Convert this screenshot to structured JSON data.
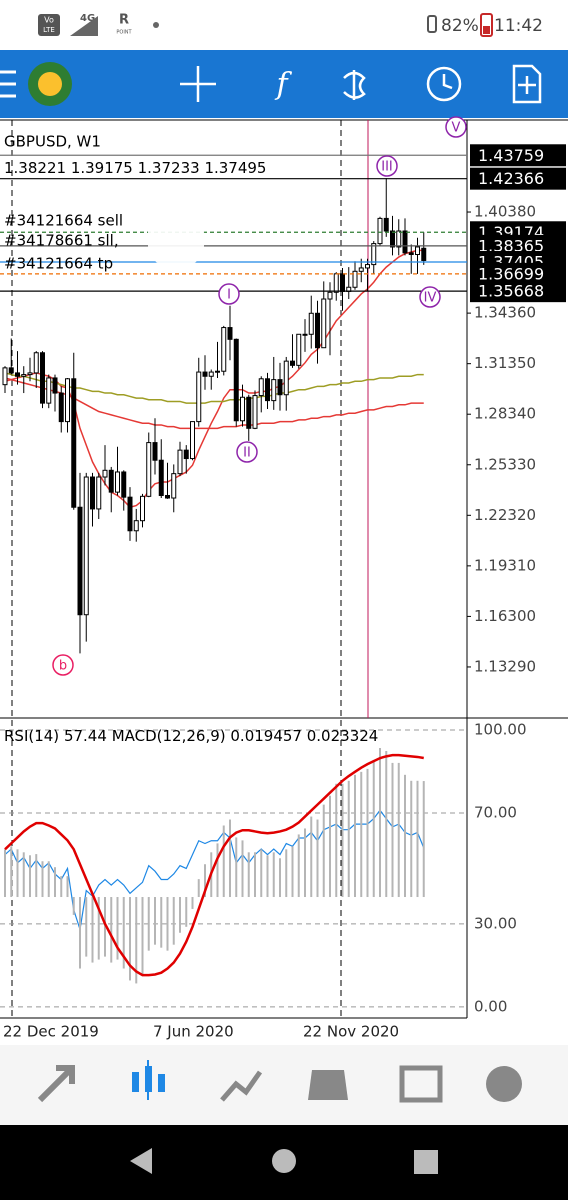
{
  "status_bar": {
    "vo": "Vo",
    "lte": "LTE",
    "network": "4G",
    "roaming": "R",
    "point": "POINT",
    "battery": "82%",
    "time": "11:42"
  },
  "chart_data": [
    {
      "type": "candlestick",
      "title": "GBPUSD, W1",
      "categories": [
        "22 Dec 2019",
        null,
        null,
        null,
        null,
        null,
        null,
        null,
        null,
        null,
        null,
        null,
        null,
        null,
        null,
        null,
        null,
        null,
        null,
        null,
        null,
        null,
        null,
        null,
        "7 Jun 2020",
        null,
        null,
        null,
        null,
        null,
        null,
        null,
        null,
        null,
        null,
        null,
        null,
        null,
        null,
        null,
        null,
        null,
        null,
        null,
        null,
        null,
        null,
        null,
        "22 Nov 2020",
        null,
        null,
        null,
        null,
        null,
        null,
        null,
        null,
        null,
        null,
        null,
        null,
        null,
        null,
        null,
        null,
        null,
        null,
        null
      ],
      "open": [
        1.301,
        1.311,
        1.308,
        1.306,
        1.307,
        1.308,
        1.32,
        1.29,
        1.305,
        1.296,
        1.279,
        1.3045,
        1.228,
        1.164,
        1.246,
        1.227,
        1.246,
        1.25,
        1.237,
        1.249,
        1.234,
        1.214,
        1.22,
        1.2345,
        1.2665,
        1.256,
        1.235,
        1.2335,
        1.248,
        1.262,
        1.257,
        1.279,
        1.3085,
        1.306,
        1.3085,
        1.309,
        1.335,
        1.328,
        1.2795,
        1.2935,
        1.275,
        1.2945,
        1.3045,
        1.2915,
        1.304,
        1.295,
        1.315,
        1.3125,
        1.331,
        1.331,
        1.3435,
        1.323,
        1.352,
        1.356,
        1.367,
        1.3565,
        1.359,
        1.3685,
        1.3705,
        1.3725,
        1.385,
        1.4,
        1.3925,
        1.383,
        1.3925,
        1.3795,
        1.3785,
        1.38221
      ],
      "high": [
        1.312,
        1.3285,
        1.321,
        1.312,
        1.317,
        1.321,
        1.321,
        1.307,
        1.307,
        1.3,
        1.305,
        1.32,
        1.2485,
        1.2485,
        1.2485,
        1.2485,
        1.265,
        1.252,
        1.264,
        1.25,
        1.24,
        1.227,
        1.236,
        1.2725,
        1.281,
        1.2685,
        1.2545,
        1.2535,
        1.267,
        1.265,
        1.279,
        1.317,
        1.3185,
        1.31,
        1.3265,
        1.336,
        1.348,
        1.3285,
        1.301,
        1.295,
        1.2975,
        1.306,
        1.308,
        1.3175,
        1.314,
        1.3175,
        1.331,
        1.331,
        1.34,
        1.354,
        1.351,
        1.3625,
        1.362,
        1.368,
        1.3705,
        1.371,
        1.3745,
        1.376,
        1.376,
        1.3865,
        1.401,
        1.424,
        1.4015,
        1.3995,
        1.4,
        1.3845,
        1.3885,
        1.39175
      ],
      "low": [
        1.296,
        1.307,
        1.301,
        1.296,
        1.303,
        1.299,
        1.287,
        1.287,
        1.285,
        1.2725,
        1.2725,
        1.2265,
        1.141,
        1.148,
        1.2165,
        1.221,
        1.241,
        1.225,
        1.235,
        1.226,
        1.208,
        1.2075,
        1.216,
        1.234,
        1.2475,
        1.2335,
        1.233,
        1.225,
        1.2465,
        1.248,
        1.256,
        1.276,
        1.298,
        1.298,
        1.305,
        1.3065,
        1.3155,
        1.276,
        1.276,
        1.2675,
        1.2745,
        1.2845,
        1.2865,
        1.286,
        1.2855,
        1.2855,
        1.311,
        1.3105,
        1.3205,
        1.3225,
        1.3135,
        1.323,
        1.3185,
        1.351,
        1.345,
        1.352,
        1.3575,
        1.362,
        1.3565,
        1.367,
        1.3835,
        1.389,
        1.378,
        1.378,
        1.378,
        1.367,
        1.367,
        1.37233
      ],
      "close": [
        1.311,
        1.308,
        1.306,
        1.307,
        1.308,
        1.32,
        1.29,
        1.305,
        1.296,
        1.279,
        1.3045,
        1.228,
        1.164,
        1.246,
        1.227,
        1.246,
        1.25,
        1.237,
        1.249,
        1.234,
        1.214,
        1.22,
        1.2345,
        1.2665,
        1.256,
        1.235,
        1.2335,
        1.248,
        1.262,
        1.257,
        1.279,
        1.3085,
        1.306,
        1.3085,
        1.309,
        1.335,
        1.328,
        1.2795,
        1.2935,
        1.275,
        1.2945,
        1.3045,
        1.2915,
        1.304,
        1.295,
        1.315,
        1.3125,
        1.331,
        1.331,
        1.3435,
        1.323,
        1.352,
        1.356,
        1.367,
        1.3565,
        1.359,
        1.3685,
        1.3705,
        1.3725,
        1.385,
        1.4,
        1.3925,
        1.383,
        1.3925,
        1.3795,
        1.3785,
        1.383,
        1.37495
      ],
      "lines": [
        {
          "color": "#e53935",
          "values": [
            1.303,
            1.304,
            1.305,
            1.306,
            1.307,
            1.308,
            1.307,
            1.306,
            1.304,
            1.3,
            1.299,
            1.29,
            1.275,
            1.265,
            1.255,
            1.248,
            1.242,
            1.237,
            1.235,
            1.232,
            1.228,
            1.229,
            1.232,
            1.238,
            1.242,
            1.243,
            1.243,
            1.245,
            1.247,
            1.249,
            1.253,
            1.262,
            1.27,
            1.278,
            1.285,
            1.293,
            1.298,
            1.298,
            1.298,
            1.296,
            1.296,
            1.297,
            1.297,
            1.299,
            1.3,
            1.303,
            1.306,
            1.31,
            1.314,
            1.319,
            1.322,
            1.327,
            1.333,
            1.339,
            1.343,
            1.347,
            1.351,
            1.355,
            1.358,
            1.362,
            1.367,
            1.371,
            1.374,
            1.377,
            1.379,
            1.38,
            1.381,
            1.381
          ]
        },
        {
          "color": "#9e9d24",
          "values": [
            1.308,
            1.307,
            1.306,
            1.306,
            1.305,
            1.304,
            1.303,
            1.303,
            1.302,
            1.301,
            1.3,
            1.299,
            1.299,
            1.298,
            1.297,
            1.297,
            1.296,
            1.296,
            1.295,
            1.295,
            1.294,
            1.293,
            1.293,
            1.292,
            1.292,
            1.292,
            1.291,
            1.291,
            1.291,
            1.29,
            1.29,
            1.29,
            1.29,
            1.291,
            1.291,
            1.291,
            1.292,
            1.292,
            1.292,
            1.293,
            1.293,
            1.294,
            1.294,
            1.295,
            1.296,
            1.296,
            1.297,
            1.298,
            1.298,
            1.299,
            1.3,
            1.3,
            1.301,
            1.301,
            1.302,
            1.302,
            1.303,
            1.303,
            1.304,
            1.304,
            1.305,
            1.305,
            1.305,
            1.306,
            1.306,
            1.306,
            1.307,
            1.307
          ]
        },
        {
          "color": "#e53935",
          "values": [
            1.305,
            1.304,
            1.303,
            1.302,
            1.301,
            1.3,
            1.299,
            1.298,
            1.297,
            1.296,
            1.295,
            1.293,
            1.291,
            1.289,
            1.287,
            1.285,
            1.284,
            1.283,
            1.282,
            1.281,
            1.28,
            1.279,
            1.278,
            1.278,
            1.277,
            1.277,
            1.276,
            1.276,
            1.275,
            1.275,
            1.275,
            1.275,
            1.275,
            1.275,
            1.275,
            1.276,
            1.276,
            1.276,
            1.277,
            1.277,
            1.277,
            1.278,
            1.278,
            1.278,
            1.279,
            1.279,
            1.279,
            1.28,
            1.28,
            1.281,
            1.281,
            1.282,
            1.282,
            1.283,
            1.283,
            1.284,
            1.284,
            1.285,
            1.286,
            1.286,
            1.287,
            1.288,
            1.288,
            1.289,
            1.289,
            1.29,
            1.29,
            1.29
          ]
        }
      ],
      "price_levels": [
        {
          "value": 1.43759,
          "color": "#777777"
        },
        {
          "value": 1.42366,
          "color": "#000000"
        },
        {
          "value": 1.39174,
          "color": "#2e7d32",
          "dash": true
        },
        {
          "value": 1.38365,
          "color": "#555555"
        },
        {
          "value": 1.37405,
          "color": "#1e88e5"
        },
        {
          "value": 1.36699,
          "color": "#ef6c00",
          "dash": true
        },
        {
          "value": 1.35668,
          "color": "#000000"
        }
      ],
      "annotations": [
        "#34121664 sell",
        "#34178661 sll,",
        "#34121664 tp"
      ],
      "wave_labels": [
        "I",
        "II",
        "III",
        "IV",
        "V",
        "b"
      ],
      "ylim": [
        1.1025,
        1.4586
      ],
      "yticks": [
        {
          "value": 1.4038,
          "label": "1.40380"
        },
        {
          "value": 1.3436,
          "label": "1.34360"
        },
        {
          "value": 1.3135,
          "label": "1.31350"
        },
        {
          "value": 1.2834,
          "label": "1.28340"
        },
        {
          "value": 1.2533,
          "label": "1.25330"
        },
        {
          "value": 1.2232,
          "label": "1.22320"
        },
        {
          "value": 1.1931,
          "label": "1.19310"
        },
        {
          "value": 1.163,
          "label": "1.16300"
        },
        {
          "value": 1.1329,
          "label": "1.13290"
        }
      ]
    },
    {
      "type": "line",
      "series": [
        {
          "name": "RSI(14)",
          "color": "#1e88e5",
          "values": [
            55,
            57,
            52,
            54,
            50,
            53,
            50,
            52,
            48,
            46,
            50,
            35,
            28,
            42,
            40,
            44,
            46,
            44,
            46,
            44,
            41,
            43,
            45,
            51,
            49,
            46,
            46,
            48,
            51,
            50,
            55,
            60,
            59,
            60,
            60,
            63,
            61,
            52,
            55,
            52,
            55,
            57,
            55,
            57,
            55,
            59,
            58,
            61,
            61,
            63,
            60,
            64,
            65,
            66,
            64,
            64,
            66,
            66,
            66,
            68,
            71,
            68,
            65,
            66,
            63,
            62,
            63,
            57.44
          ]
        },
        {
          "name": "MACD(12,26,9)",
          "type": "bar",
          "color": "#b5b5b5",
          "axis": "y2",
          "values": [
            0.008,
            0.0085,
            0.008,
            0.0075,
            0.007,
            0.0072,
            0.006,
            0.006,
            0.005,
            0.0035,
            0.0035,
            -0.003,
            -0.012,
            -0.01,
            -0.011,
            -0.0105,
            -0.01,
            -0.011,
            -0.0105,
            -0.012,
            -0.014,
            -0.0145,
            -0.013,
            -0.009,
            -0.008,
            -0.0085,
            -0.009,
            -0.008,
            -0.006,
            -0.005,
            -0.002,
            0.003,
            0.0055,
            0.0075,
            0.009,
            0.012,
            0.013,
            0.01,
            0.0095,
            0.0075,
            0.0075,
            0.008,
            0.007,
            0.0075,
            0.0065,
            0.008,
            0.0085,
            0.0105,
            0.0115,
            0.0135,
            0.013,
            0.0155,
            0.017,
            0.019,
            0.019,
            0.0195,
            0.0205,
            0.021,
            0.0215,
            0.023,
            0.025,
            0.0245,
            0.0225,
            0.0225,
            0.0205,
            0.0195,
            0.0195,
            0.019457
          ]
        },
        {
          "color": "#e00000",
          "axis": "y2",
          "values": [
            0.008,
            0.009,
            0.01,
            0.011,
            0.0118,
            0.0124,
            0.0124,
            0.012,
            0.0115,
            0.0105,
            0.0095,
            0.008,
            0.0055,
            0.003,
            0.0005,
            -0.002,
            -0.0045,
            -0.0065,
            -0.0085,
            -0.01,
            -0.0115,
            -0.0125,
            -0.0131,
            -0.0131,
            -0.013,
            -0.0127,
            -0.012,
            -0.011,
            -0.0095,
            -0.0075,
            -0.005,
            -0.002,
            0.001,
            0.004,
            0.0065,
            0.0085,
            0.01,
            0.0108,
            0.0112,
            0.0112,
            0.011,
            0.0108,
            0.0107,
            0.0108,
            0.011,
            0.0113,
            0.0118,
            0.0125,
            0.0135,
            0.0145,
            0.0155,
            0.0165,
            0.0175,
            0.0185,
            0.0195,
            0.0203,
            0.021,
            0.0217,
            0.0223,
            0.0228,
            0.0233,
            0.0236,
            0.0238,
            0.0238,
            0.0237,
            0.0236,
            0.0235,
            0.023324
          ]
        }
      ],
      "ylim": [
        -4,
        103.6
      ],
      "y2lim": [
        -0.0203,
        0.0297
      ],
      "yticks": [
        {
          "value": 100,
          "label": "100.00"
        },
        {
          "value": 70,
          "label": "70.00"
        },
        {
          "value": 30,
          "label": "30.00"
        },
        {
          "value": 0,
          "label": "0.00"
        }
      ],
      "grid": true
    }
  ]
}
